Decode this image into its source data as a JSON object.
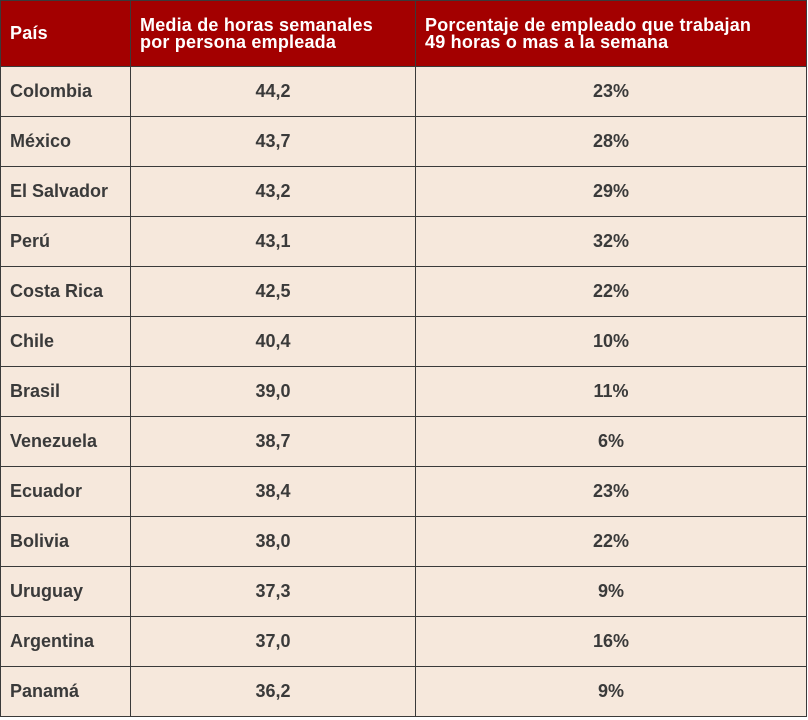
{
  "table": {
    "headers": {
      "country": "País",
      "hours_line1": "Media de horas semanales",
      "hours_line2": "por persona empleada",
      "pct_line1": "Porcentaje de empleado que trabajan",
      "pct_line2": "49 horas o mas a la semana"
    },
    "rows": [
      {
        "country": "Colombia",
        "hours": "44,2",
        "pct": "23%"
      },
      {
        "country": "México",
        "hours": "43,7",
        "pct": "28%"
      },
      {
        "country": "El Salvador",
        "hours": "43,2",
        "pct": "29%"
      },
      {
        "country": "Perú",
        "hours": "43,1",
        "pct": "32%"
      },
      {
        "country": "Costa Rica",
        "hours": "42,5",
        "pct": "22%"
      },
      {
        "country": "Chile",
        "hours": "40,4",
        "pct": "10%"
      },
      {
        "country": "Brasil",
        "hours": "39,0",
        "pct": "11%"
      },
      {
        "country": "Venezuela",
        "hours": "38,7",
        "pct": "6%"
      },
      {
        "country": "Ecuador",
        "hours": "38,4",
        "pct": "23%"
      },
      {
        "country": "Bolivia",
        "hours": "38,0",
        "pct": "22%"
      },
      {
        "country": "Uruguay",
        "hours": "37,3",
        "pct": "9%"
      },
      {
        "country": "Argentina",
        "hours": "37,0",
        "pct": "16%"
      },
      {
        "country": "Panamá",
        "hours": "36,2",
        "pct": "9%"
      }
    ],
    "colors": {
      "header_background": "#a30000",
      "header_text": "#ffffff",
      "cell_background": "#f6e8dc",
      "cell_text": "#3a3a3a",
      "border": "#3a3a3a"
    }
  }
}
